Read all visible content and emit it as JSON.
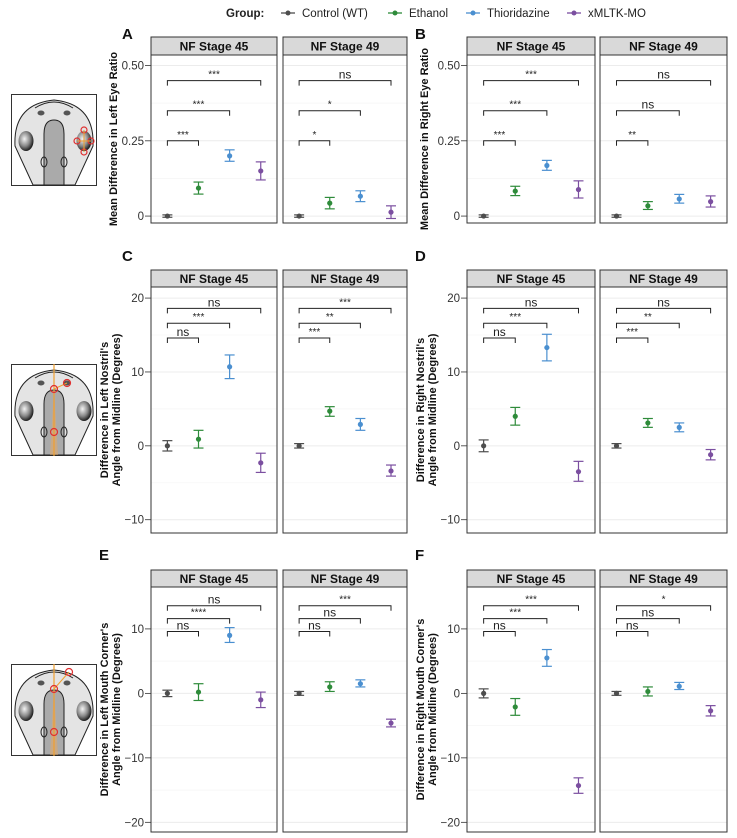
{
  "legend": {
    "title": "Group:",
    "items": [
      {
        "label": "Control (WT)",
        "color": "#4d4d4d"
      },
      {
        "label": "Ethanol",
        "color": "#2e8b3a"
      },
      {
        "label": "Thioridazine",
        "color": "#4a8fd0"
      },
      {
        "label": "xMLTK-MO",
        "color": "#7b4fa0"
      }
    ]
  },
  "illustrations": [
    {
      "name": "tadpole-eye-diagram",
      "marker": "eye-ratio"
    },
    {
      "name": "tadpole-nostril-diagram",
      "marker": "nostril-angle"
    },
    {
      "name": "tadpole-mouth-diagram",
      "marker": "mouth-corner-angle"
    }
  ],
  "chart_data": [
    {
      "letter": "A",
      "type": "scatter",
      "subtype": "point-errorbar",
      "ylabel": [
        "Mean Difference in Left Eye Ratio"
      ],
      "ylim": [
        -0.023,
        0.535
      ],
      "yticks": [
        0,
        0.25,
        0.5
      ],
      "ytick_labels": [
        "0",
        "0.25",
        "0.50"
      ],
      "grid": true,
      "facets": [
        {
          "title": "NF Stage 45",
          "points": [
            {
              "group": "Control (WT)",
              "mean": 0.0,
              "lo": -0.004,
              "hi": 0.004
            },
            {
              "group": "Ethanol",
              "mean": 0.093,
              "lo": 0.073,
              "hi": 0.113
            },
            {
              "group": "Thioridazine",
              "mean": 0.2,
              "lo": 0.182,
              "hi": 0.22
            },
            {
              "group": "xMLTK-MO",
              "mean": 0.15,
              "lo": 0.12,
              "hi": 0.18
            }
          ],
          "brackets": [
            {
              "to": 1,
              "y": 0.25,
              "label": "***"
            },
            {
              "to": 2,
              "y": 0.35,
              "label": "***"
            },
            {
              "to": 3,
              "y": 0.45,
              "label": "***"
            }
          ]
        },
        {
          "title": "NF Stage 49",
          "points": [
            {
              "group": "Control (WT)",
              "mean": 0.0,
              "lo": -0.004,
              "hi": 0.004
            },
            {
              "group": "Ethanol",
              "mean": 0.043,
              "lo": 0.024,
              "hi": 0.062
            },
            {
              "group": "Thioridazine",
              "mean": 0.066,
              "lo": 0.048,
              "hi": 0.084
            },
            {
              "group": "xMLTK-MO",
              "mean": 0.013,
              "lo": -0.008,
              "hi": 0.034
            }
          ],
          "brackets": [
            {
              "to": 1,
              "y": 0.25,
              "label": "*"
            },
            {
              "to": 2,
              "y": 0.35,
              "label": "*"
            },
            {
              "to": 3,
              "y": 0.45,
              "label": "ns"
            }
          ]
        }
      ]
    },
    {
      "letter": "B",
      "type": "scatter",
      "subtype": "point-errorbar",
      "ylabel": [
        "Mean Difference in Right Eye Ratio"
      ],
      "ylim": [
        -0.023,
        0.535
      ],
      "yticks": [
        0,
        0.25,
        0.5
      ],
      "ytick_labels": [
        "0",
        "0.25",
        "0.50"
      ],
      "grid": true,
      "facets": [
        {
          "title": "NF Stage 45",
          "points": [
            {
              "group": "Control (WT)",
              "mean": 0.0,
              "lo": -0.004,
              "hi": 0.004
            },
            {
              "group": "Ethanol",
              "mean": 0.083,
              "lo": 0.068,
              "hi": 0.099
            },
            {
              "group": "Thioridazine",
              "mean": 0.168,
              "lo": 0.152,
              "hi": 0.185
            },
            {
              "group": "xMLTK-MO",
              "mean": 0.088,
              "lo": 0.06,
              "hi": 0.117
            }
          ],
          "brackets": [
            {
              "to": 1,
              "y": 0.25,
              "label": "***"
            },
            {
              "to": 2,
              "y": 0.35,
              "label": "***"
            },
            {
              "to": 3,
              "y": 0.45,
              "label": "***"
            }
          ]
        },
        {
          "title": "NF Stage 49",
          "points": [
            {
              "group": "Control (WT)",
              "mean": 0.0,
              "lo": -0.004,
              "hi": 0.004
            },
            {
              "group": "Ethanol",
              "mean": 0.034,
              "lo": 0.022,
              "hi": 0.048
            },
            {
              "group": "Thioridazine",
              "mean": 0.057,
              "lo": 0.043,
              "hi": 0.072
            },
            {
              "group": "xMLTK-MO",
              "mean": 0.048,
              "lo": 0.03,
              "hi": 0.067
            }
          ],
          "brackets": [
            {
              "to": 1,
              "y": 0.25,
              "label": "**"
            },
            {
              "to": 2,
              "y": 0.35,
              "label": "ns"
            },
            {
              "to": 3,
              "y": 0.45,
              "label": "ns"
            }
          ]
        }
      ]
    },
    {
      "letter": "C",
      "type": "scatter",
      "subtype": "point-errorbar",
      "ylabel": [
        "Difference in Left Nostril's",
        "Angle from Midline (Degrees)"
      ],
      "ylim": [
        -11.8,
        21.5
      ],
      "yticks": [
        -10,
        0,
        10,
        20
      ],
      "ytick_labels": [
        "−10",
        "0",
        "10",
        "20"
      ],
      "grid": true,
      "facets": [
        {
          "title": "NF Stage 45",
          "points": [
            {
              "group": "Control (WT)",
              "mean": 0.0,
              "lo": -0.7,
              "hi": 0.7
            },
            {
              "group": "Ethanol",
              "mean": 0.9,
              "lo": -0.3,
              "hi": 2.1
            },
            {
              "group": "Thioridazine",
              "mean": 10.7,
              "lo": 9.1,
              "hi": 12.3
            },
            {
              "group": "xMLTK-MO",
              "mean": -2.3,
              "lo": -3.6,
              "hi": -1.0
            }
          ],
          "brackets": [
            {
              "to": 1,
              "y": 14.6,
              "label": "ns"
            },
            {
              "to": 2,
              "y": 16.6,
              "label": "***"
            },
            {
              "to": 3,
              "y": 18.6,
              "label": "ns"
            }
          ]
        },
        {
          "title": "NF Stage 49",
          "points": [
            {
              "group": "Control (WT)",
              "mean": 0.0,
              "lo": -0.3,
              "hi": 0.3
            },
            {
              "group": "Ethanol",
              "mean": 4.7,
              "lo": 4.0,
              "hi": 5.3
            },
            {
              "group": "Thioridazine",
              "mean": 2.9,
              "lo": 2.1,
              "hi": 3.7
            },
            {
              "group": "xMLTK-MO",
              "mean": -3.4,
              "lo": -4.1,
              "hi": -2.6
            }
          ],
          "brackets": [
            {
              "to": 1,
              "y": 14.6,
              "label": "***"
            },
            {
              "to": 2,
              "y": 16.6,
              "label": "**"
            },
            {
              "to": 3,
              "y": 18.6,
              "label": "***"
            }
          ]
        }
      ]
    },
    {
      "letter": "D",
      "type": "scatter",
      "subtype": "point-errorbar",
      "ylabel": [
        "Difference in Right Nostril's",
        "Angle from Midline (Degrees)"
      ],
      "ylim": [
        -11.8,
        21.5
      ],
      "yticks": [
        -10,
        0,
        10,
        20
      ],
      "ytick_labels": [
        "−10",
        "0",
        "10",
        "20"
      ],
      "grid": true,
      "facets": [
        {
          "title": "NF Stage 45",
          "points": [
            {
              "group": "Control (WT)",
              "mean": 0.0,
              "lo": -0.8,
              "hi": 0.8
            },
            {
              "group": "Ethanol",
              "mean": 4.0,
              "lo": 2.8,
              "hi": 5.2
            },
            {
              "group": "Thioridazine",
              "mean": 13.3,
              "lo": 11.5,
              "hi": 15.1
            },
            {
              "group": "xMLTK-MO",
              "mean": -3.5,
              "lo": -4.8,
              "hi": -2.1
            }
          ],
          "brackets": [
            {
              "to": 1,
              "y": 14.6,
              "label": "ns"
            },
            {
              "to": 2,
              "y": 16.6,
              "label": "***"
            },
            {
              "to": 3,
              "y": 18.6,
              "label": "ns"
            }
          ]
        },
        {
          "title": "NF Stage 49",
          "points": [
            {
              "group": "Control (WT)",
              "mean": 0.0,
              "lo": -0.3,
              "hi": 0.3
            },
            {
              "group": "Ethanol",
              "mean": 3.1,
              "lo": 2.5,
              "hi": 3.7
            },
            {
              "group": "Thioridazine",
              "mean": 2.5,
              "lo": 1.9,
              "hi": 3.1
            },
            {
              "group": "xMLTK-MO",
              "mean": -1.2,
              "lo": -1.9,
              "hi": -0.5
            }
          ],
          "brackets": [
            {
              "to": 1,
              "y": 14.6,
              "label": "***"
            },
            {
              "to": 2,
              "y": 16.6,
              "label": "**"
            },
            {
              "to": 3,
              "y": 18.6,
              "label": "ns"
            }
          ]
        }
      ]
    },
    {
      "letter": "E",
      "type": "scatter",
      "subtype": "point-errorbar",
      "ylabel": [
        "Difference in Left Mouth Corner's",
        "Angle from Midline (Degrees)"
      ],
      "ylim": [
        -21.5,
        16.5
      ],
      "yticks": [
        -20,
        -10,
        0,
        10
      ],
      "ytick_labels": [
        "−20",
        "−10",
        "0",
        "10"
      ],
      "grid": true,
      "facets": [
        {
          "title": "NF Stage 45",
          "points": [
            {
              "group": "Control (WT)",
              "mean": 0.0,
              "lo": -0.5,
              "hi": 0.5
            },
            {
              "group": "Ethanol",
              "mean": 0.2,
              "lo": -1.1,
              "hi": 1.5
            },
            {
              "group": "Thioridazine",
              "mean": 9.0,
              "lo": 7.9,
              "hi": 10.2
            },
            {
              "group": "xMLTK-MO",
              "mean": -1.0,
              "lo": -2.2,
              "hi": 0.2
            }
          ],
          "brackets": [
            {
              "to": 1,
              "y": 9.6,
              "label": "ns"
            },
            {
              "to": 2,
              "y": 11.6,
              "label": "****"
            },
            {
              "to": 3,
              "y": 13.6,
              "label": "ns"
            }
          ]
        },
        {
          "title": "NF Stage 49",
          "points": [
            {
              "group": "Control (WT)",
              "mean": 0.0,
              "lo": -0.3,
              "hi": 0.3
            },
            {
              "group": "Ethanol",
              "mean": 1.0,
              "lo": 0.3,
              "hi": 1.8
            },
            {
              "group": "Thioridazine",
              "mean": 1.5,
              "lo": 1.0,
              "hi": 2.1
            },
            {
              "group": "xMLTK-MO",
              "mean": -4.6,
              "lo": -5.2,
              "hi": -4.0
            }
          ],
          "brackets": [
            {
              "to": 1,
              "y": 9.6,
              "label": "ns"
            },
            {
              "to": 2,
              "y": 11.6,
              "label": "ns"
            },
            {
              "to": 3,
              "y": 13.6,
              "label": "***"
            }
          ]
        }
      ]
    },
    {
      "letter": "F",
      "type": "scatter",
      "subtype": "point-errorbar",
      "ylabel": [
        "Difference in Right Mouth Corner's",
        "Angle from Midline (Degrees)"
      ],
      "ylim": [
        -21.5,
        16.5
      ],
      "yticks": [
        -20,
        -10,
        0,
        10
      ],
      "ytick_labels": [
        "−20",
        "−10",
        "0",
        "10"
      ],
      "grid": true,
      "facets": [
        {
          "title": "NF Stage 45",
          "points": [
            {
              "group": "Control (WT)",
              "mean": 0.0,
              "lo": -0.7,
              "hi": 0.7
            },
            {
              "group": "Ethanol",
              "mean": -2.1,
              "lo": -3.4,
              "hi": -0.8
            },
            {
              "group": "Thioridazine",
              "mean": 5.5,
              "lo": 4.2,
              "hi": 6.8
            },
            {
              "group": "xMLTK-MO",
              "mean": -14.3,
              "lo": -15.5,
              "hi": -13.1
            }
          ],
          "brackets": [
            {
              "to": 1,
              "y": 9.6,
              "label": "ns"
            },
            {
              "to": 2,
              "y": 11.6,
              "label": "***"
            },
            {
              "to": 3,
              "y": 13.6,
              "label": "***"
            }
          ]
        },
        {
          "title": "NF Stage 49",
          "points": [
            {
              "group": "Control (WT)",
              "mean": 0.0,
              "lo": -0.3,
              "hi": 0.3
            },
            {
              "group": "Ethanol",
              "mean": 0.3,
              "lo": -0.4,
              "hi": 1.0
            },
            {
              "group": "Thioridazine",
              "mean": 1.1,
              "lo": 0.6,
              "hi": 1.7
            },
            {
              "group": "xMLTK-MO",
              "mean": -2.7,
              "lo": -3.5,
              "hi": -1.9
            }
          ],
          "brackets": [
            {
              "to": 1,
              "y": 9.6,
              "label": "ns"
            },
            {
              "to": 2,
              "y": 11.6,
              "label": "ns"
            },
            {
              "to": 3,
              "y": 13.6,
              "label": "*"
            }
          ]
        }
      ]
    }
  ]
}
